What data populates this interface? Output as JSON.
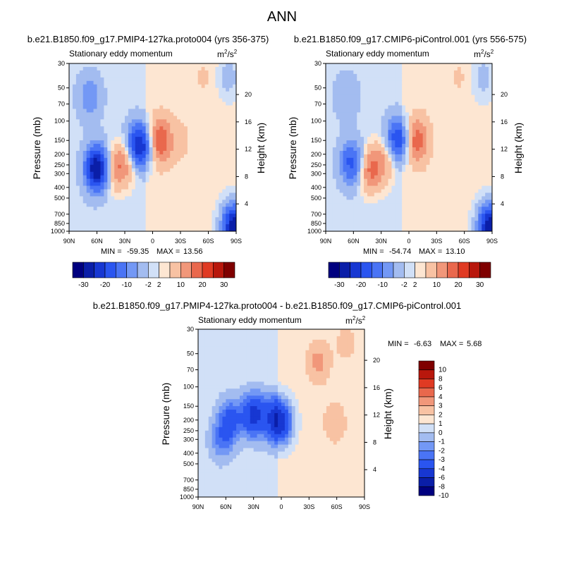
{
  "page_title": "ANN",
  "chart_data": [
    {
      "type": "heatmap",
      "title": "b.e21.B1850.f09_g17.PMIP4-127ka.proto004 (yrs 356-375)",
      "left_label": "Stationary eddy momentum",
      "units_base": "m",
      "units_exp1": "2",
      "units_mid": "/s",
      "units_exp2": "2",
      "xlabel": "",
      "ylabel": "Pressure (mb)",
      "ylabel_right": "Height (km)",
      "x_ticks": [
        "90N",
        "60N",
        "30N",
        "0",
        "30S",
        "60S",
        "90S"
      ],
      "y_ticks": [
        "30",
        "50",
        "70",
        "100",
        "150",
        "200",
        "250",
        "300",
        "400",
        "500",
        "700",
        "850",
        "1000"
      ],
      "height_ticks": [
        "20",
        "16",
        "12",
        "8",
        "4"
      ],
      "min_label": "MIN =",
      "min_value": "-59.35",
      "max_label": "MAX =",
      "max_value": "13.56",
      "colorbar_labels": [
        "-30",
        "-20",
        "-10",
        "-2",
        "2",
        "10",
        "20",
        "30"
      ],
      "features": [
        {
          "lat": 60,
          "p": 270,
          "value": -30
        },
        {
          "lat": 68,
          "p": 60,
          "value": -8
        },
        {
          "lat": 15,
          "p": 170,
          "value": -28
        },
        {
          "lat": -8,
          "p": 150,
          "value": 13.5
        },
        {
          "lat": 40,
          "p": 270,
          "value": 10
        },
        {
          "lat": 25,
          "p": 220,
          "value": 9
        },
        {
          "lat": -30,
          "p": 150,
          "value": 2
        },
        {
          "lat": -55,
          "p": 40,
          "value": 1.5
        },
        {
          "lat": -82,
          "p": 40,
          "value": -4
        },
        {
          "lat": -88,
          "p": 900,
          "value": -30
        }
      ]
    },
    {
      "type": "heatmap",
      "title": "b.e21.B1850.f09_g17.CMIP6-piControl.001 (yrs 556-575)",
      "left_label": "Stationary eddy momentum",
      "units_base": "m",
      "units_exp1": "2",
      "units_mid": "/s",
      "units_exp2": "2",
      "xlabel": "",
      "ylabel": "Pressure (mb)",
      "ylabel_right": "Height (km)",
      "x_ticks": [
        "90N",
        "60N",
        "30N",
        "0",
        "30S",
        "60S",
        "90S"
      ],
      "y_ticks": [
        "30",
        "50",
        "70",
        "100",
        "150",
        "200",
        "250",
        "300",
        "400",
        "500",
        "700",
        "850",
        "1000"
      ],
      "height_ticks": [
        "20",
        "16",
        "12",
        "8",
        "4"
      ],
      "min_label": "MIN =",
      "min_value": "-54.74",
      "max_label": "MAX =",
      "max_value": "13.10",
      "colorbar_labels": [
        "-30",
        "-20",
        "-10",
        "-2",
        "2",
        "10",
        "20",
        "30"
      ],
      "features": [
        {
          "lat": 62,
          "p": 240,
          "value": -16
        },
        {
          "lat": 68,
          "p": 60,
          "value": -5
        },
        {
          "lat": 12,
          "p": 150,
          "value": -20
        },
        {
          "lat": -8,
          "p": 150,
          "value": 13
        },
        {
          "lat": 42,
          "p": 280,
          "value": 12
        },
        {
          "lat": 25,
          "p": 220,
          "value": 8
        },
        {
          "lat": -55,
          "p": 40,
          "value": 1.5
        },
        {
          "lat": -80,
          "p": 40,
          "value": -4
        },
        {
          "lat": -88,
          "p": 900,
          "value": -30
        }
      ]
    },
    {
      "type": "heatmap",
      "title": "b.e21.B1850.f09_g17.PMIP4-127ka.proto004 - b.e21.B1850.f09_g17.CMIP6-piControl.001",
      "left_label": "Stationary eddy momentum",
      "units_base": "m",
      "units_exp1": "2",
      "units_mid": "/s",
      "units_exp2": "2",
      "xlabel": "",
      "ylabel": "Pressure (mb)",
      "ylabel_right": "Height (km)",
      "x_ticks": [
        "90N",
        "60N",
        "30N",
        "0",
        "30S",
        "60S",
        "90S"
      ],
      "y_ticks": [
        "30",
        "50",
        "70",
        "100",
        "150",
        "200",
        "250",
        "300",
        "400",
        "500",
        "700",
        "850",
        "1000"
      ],
      "height_ticks": [
        "20",
        "16",
        "12",
        "8",
        "4"
      ],
      "min_label": "MIN =",
      "min_value": "-6.63",
      "max_label": "MAX =",
      "max_value": "5.68",
      "colorbar_labels": [
        "10",
        "8",
        "6",
        "4",
        "3",
        "2",
        "1",
        "0",
        "-1",
        "-2",
        "-3",
        "-4",
        "-6",
        "-8",
        "-10"
      ],
      "features": [
        {
          "lat": 65,
          "p": 300,
          "value": -2.5
        },
        {
          "lat": 55,
          "p": 200,
          "value": -4
        },
        {
          "lat": 30,
          "p": 180,
          "value": -6
        },
        {
          "lat": 10,
          "p": 190,
          "value": -3
        },
        {
          "lat": 0,
          "p": 210,
          "value": -6.6
        },
        {
          "lat": -40,
          "p": 60,
          "value": 2
        },
        {
          "lat": -58,
          "p": 210,
          "value": 1.5
        },
        {
          "lat": -70,
          "p": 40,
          "value": 1
        }
      ]
    }
  ],
  "palette": {
    "main": [
      "#00007f",
      "#0a1ea8",
      "#1737d2",
      "#2a55f0",
      "#4a74f5",
      "#7398f5",
      "#a3bcf0",
      "#d1e0f7",
      "#fde6d2",
      "#f8c2a3",
      "#f1977a",
      "#e9684d",
      "#e03a23",
      "#b8170c",
      "#7f0000"
    ],
    "diff": [
      "#00007f",
      "#0a1ea8",
      "#1737d2",
      "#2a55f0",
      "#4a74f5",
      "#7398f5",
      "#a3bcf0",
      "#d1e0f7",
      "#fde6d2",
      "#f8c2a3",
      "#f1977a",
      "#e9684d",
      "#e03a23",
      "#b8170c",
      "#7f0000"
    ]
  }
}
